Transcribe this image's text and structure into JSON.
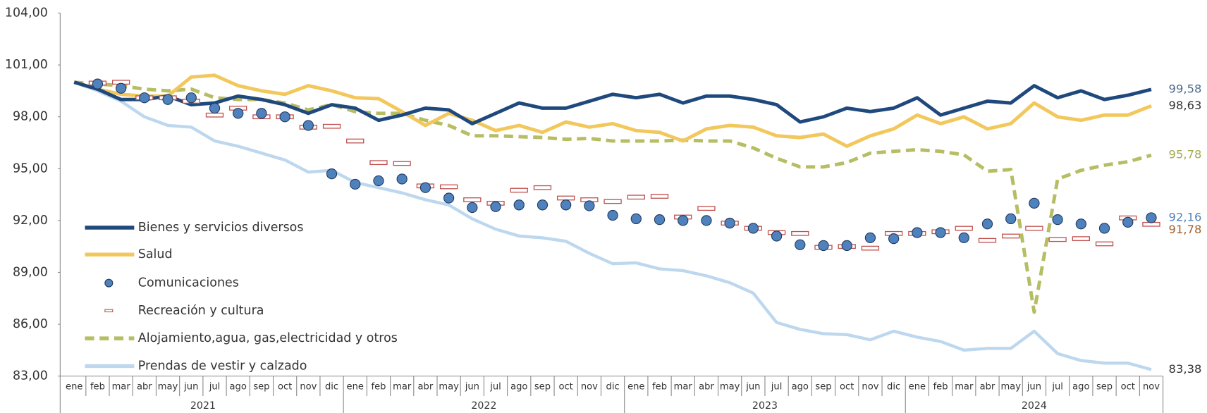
{
  "chart_data": {
    "type": "line",
    "categories": [
      "ene",
      "feb",
      "mar",
      "abr",
      "may",
      "jun",
      "jul",
      "ago",
      "sep",
      "oct",
      "nov",
      "dic",
      "ene",
      "feb",
      "mar",
      "abr",
      "may",
      "jun",
      "jul",
      "ago",
      "sep",
      "oct",
      "nov",
      "dic",
      "ene",
      "feb",
      "mar",
      "abr",
      "may",
      "jun",
      "jul",
      "ago",
      "sep",
      "oct",
      "nov",
      "dic",
      "ene",
      "feb",
      "mar",
      "abr",
      "may",
      "jun",
      "jul",
      "ago",
      "sep",
      "oct",
      "nov"
    ],
    "years": [
      "2021",
      "2022",
      "2023",
      "2024"
    ],
    "ylim": [
      83,
      104
    ],
    "yticks": [
      {
        "value": 83,
        "label": "83,00"
      },
      {
        "value": 86,
        "label": "86,00"
      },
      {
        "value": 89,
        "label": "89,00"
      },
      {
        "value": 92,
        "label": "92,00"
      },
      {
        "value": 95,
        "label": "95,00"
      },
      {
        "value": 98,
        "label": "98,00"
      },
      {
        "value": 101,
        "label": "101,00"
      },
      {
        "value": 104,
        "label": "104,00"
      }
    ],
    "series": [
      {
        "name": "Bienes y servicios diversos",
        "style": "line",
        "color": "#1f497d",
        "label_color": "#4a6a8f",
        "values": [
          100,
          99.6,
          99.0,
          99.0,
          99.2,
          98.7,
          98.8,
          99.2,
          99.0,
          98.7,
          98.2,
          98.7,
          98.5,
          97.8,
          98.1,
          98.5,
          98.4,
          97.6,
          98.2,
          98.8,
          98.5,
          98.5,
          98.9,
          99.3,
          99.1,
          99.3,
          98.8,
          99.2,
          99.2,
          99.0,
          98.7,
          97.7,
          98.0,
          98.5,
          98.3,
          98.5,
          99.1,
          98.1,
          98.5,
          98.9,
          98.8,
          99.8,
          99.1,
          99.5,
          99.0,
          99.25,
          99.58
        ],
        "value_labels": [
          null,
          null,
          null,
          null,
          null,
          null,
          null,
          null,
          null,
          null,
          null,
          null,
          null,
          null,
          null,
          null,
          null,
          null,
          null,
          null,
          null,
          null,
          null,
          null,
          null,
          null,
          null,
          null,
          null,
          null,
          null,
          null,
          null,
          null,
          null,
          null,
          null,
          null,
          null,
          null,
          null,
          null,
          null,
          null,
          null,
          null,
          "99,58"
        ]
      },
      {
        "name": "Salud",
        "style": "line",
        "color": "#f2c75c",
        "label_color": "#333333",
        "values": [
          100,
          99.6,
          99.3,
          99.2,
          99.2,
          100.3,
          100.4,
          99.8,
          99.5,
          99.3,
          99.8,
          99.5,
          99.1,
          99.05,
          98.3,
          97.5,
          98.2,
          97.8,
          97.2,
          97.5,
          97.1,
          97.7,
          97.4,
          97.6,
          97.2,
          97.1,
          96.6,
          97.3,
          97.5,
          97.4,
          96.9,
          96.8,
          97.0,
          96.3,
          96.9,
          97.3,
          98.1,
          97.6,
          98.0,
          97.3,
          97.6,
          98.8,
          98.0,
          97.8,
          98.1,
          98.1,
          98.63
        ],
        "value_labels": [
          null,
          null,
          null,
          null,
          null,
          null,
          null,
          null,
          null,
          null,
          null,
          null,
          null,
          null,
          null,
          null,
          null,
          null,
          null,
          null,
          null,
          null,
          null,
          null,
          null,
          null,
          null,
          null,
          null,
          null,
          null,
          null,
          null,
          null,
          null,
          null,
          null,
          null,
          null,
          null,
          null,
          null,
          null,
          null,
          null,
          null,
          "98,63"
        ]
      },
      {
        "name": "Comunicaciones",
        "style": "dot",
        "color": "#4f81bd",
        "label_color": "#4f81bd",
        "values": [
          null,
          99.9,
          99.65,
          99.1,
          99.0,
          99.1,
          98.5,
          98.2,
          98.2,
          98.0,
          97.5,
          94.7,
          94.1,
          94.3,
          94.4,
          93.9,
          93.3,
          92.75,
          92.8,
          92.9,
          92.9,
          92.9,
          92.85,
          92.3,
          92.1,
          92.05,
          92.0,
          92.0,
          91.85,
          91.55,
          91.1,
          90.6,
          90.55,
          90.55,
          91.0,
          90.95,
          91.3,
          91.3,
          91.0,
          91.8,
          92.1,
          93.0,
          92.05,
          91.8,
          91.55,
          91.9,
          92.16
        ],
        "value_labels": [
          null,
          null,
          null,
          null,
          null,
          null,
          null,
          null,
          null,
          null,
          null,
          null,
          null,
          null,
          null,
          null,
          null,
          null,
          null,
          null,
          null,
          null,
          null,
          null,
          null,
          null,
          null,
          null,
          null,
          null,
          null,
          null,
          null,
          null,
          null,
          null,
          null,
          null,
          null,
          null,
          null,
          null,
          null,
          null,
          null,
          null,
          "92,16"
        ]
      },
      {
        "name": "Recreación y cultura",
        "style": "dash-marker",
        "color": "#c0504d",
        "label_color": "#a0622d",
        "values": [
          null,
          99.95,
          100.0,
          99.1,
          99.1,
          98.9,
          98.1,
          98.5,
          98.0,
          98.0,
          97.4,
          97.45,
          96.6,
          95.35,
          95.3,
          94.0,
          93.95,
          93.2,
          93.0,
          93.75,
          93.9,
          93.3,
          93.2,
          93.1,
          93.35,
          93.4,
          92.2,
          92.7,
          91.85,
          91.55,
          91.3,
          91.25,
          90.45,
          90.5,
          90.4,
          91.25,
          91.25,
          91.35,
          91.55,
          90.85,
          91.1,
          91.55,
          90.9,
          90.95,
          90.65,
          92.15,
          91.78
        ],
        "value_labels": [
          null,
          null,
          null,
          null,
          null,
          null,
          null,
          null,
          null,
          null,
          null,
          null,
          null,
          null,
          null,
          null,
          null,
          null,
          null,
          null,
          null,
          null,
          null,
          null,
          null,
          null,
          null,
          null,
          null,
          null,
          null,
          null,
          null,
          null,
          null,
          null,
          null,
          null,
          null,
          null,
          null,
          null,
          null,
          null,
          null,
          null,
          "91,78"
        ]
      },
      {
        "name": "Alojamiento,agua, gas,electricidad y otros",
        "style": "dashed",
        "color": "#b6bd63",
        "label_color": "#a3ab4e",
        "values": [
          100,
          99.9,
          99.8,
          99.6,
          99.5,
          99.6,
          99.1,
          99.0,
          99.0,
          98.8,
          98.4,
          98.7,
          98.3,
          98.2,
          98.2,
          97.8,
          97.5,
          96.9,
          96.9,
          96.85,
          96.8,
          96.7,
          96.75,
          96.6,
          96.6,
          96.6,
          96.65,
          96.6,
          96.6,
          96.2,
          95.6,
          95.1,
          95.1,
          95.35,
          95.9,
          96.0,
          96.1,
          96.0,
          95.8,
          94.85,
          94.95,
          86.7,
          94.4,
          94.9,
          95.2,
          95.4,
          95.78
        ],
        "value_labels": [
          null,
          null,
          null,
          null,
          null,
          null,
          null,
          null,
          null,
          null,
          null,
          null,
          null,
          null,
          null,
          null,
          null,
          null,
          null,
          null,
          null,
          null,
          null,
          null,
          null,
          null,
          null,
          null,
          null,
          null,
          null,
          null,
          null,
          null,
          null,
          null,
          null,
          null,
          null,
          null,
          null,
          null,
          null,
          null,
          null,
          null,
          "95,78"
        ]
      },
      {
        "name": "Prendas de vestir y calzado",
        "style": "line",
        "color": "#bdd7ee",
        "label_color": "#333333",
        "values": [
          100,
          99.5,
          98.9,
          98.0,
          97.5,
          97.4,
          96.6,
          96.3,
          95.9,
          95.5,
          94.8,
          94.9,
          94.2,
          93.9,
          93.6,
          93.2,
          92.9,
          92.1,
          91.5,
          91.1,
          91.0,
          90.8,
          90.1,
          89.5,
          89.55,
          89.2,
          89.1,
          88.8,
          88.4,
          87.8,
          86.1,
          85.7,
          85.45,
          85.4,
          85.1,
          85.6,
          85.25,
          85.0,
          84.5,
          84.6,
          84.6,
          85.6,
          84.3,
          83.9,
          83.75,
          83.75,
          83.38
        ],
        "value_labels": [
          null,
          null,
          null,
          null,
          null,
          null,
          null,
          null,
          null,
          null,
          null,
          null,
          null,
          null,
          null,
          null,
          null,
          null,
          null,
          null,
          null,
          null,
          null,
          null,
          null,
          null,
          null,
          null,
          null,
          null,
          null,
          null,
          null,
          null,
          null,
          null,
          null,
          null,
          null,
          null,
          null,
          null,
          null,
          null,
          null,
          null,
          "83,38"
        ]
      }
    ]
  }
}
